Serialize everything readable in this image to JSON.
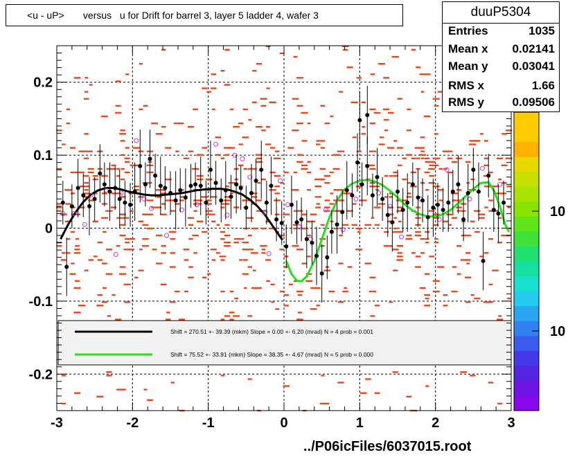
{
  "title": "<u - uP>       versus   u for Drift for barrel 3, layer 5 ladder 4, wafer 3",
  "stats": {
    "name": "duuP5304",
    "rows": [
      {
        "label": "Entries",
        "value": "1035"
      },
      {
        "label": "Mean x",
        "value": "0.02141"
      },
      {
        "label": "Mean y",
        "value": "0.03041"
      },
      {
        "label": "RMS x",
        "value": "1.66"
      },
      {
        "label": "RMS y",
        "value": "0.09506"
      }
    ]
  },
  "footer": "../P06icFiles/6037015.root",
  "colors": {
    "hist_cells": "#e8471a",
    "profile_markers": "#000000",
    "open_markers": "#d633d6",
    "fit_black": "#000000",
    "fit_green": "#22e01a"
  },
  "legend": [
    {
      "color": "#000000",
      "text": "Shift =   270.51 +- 39.39 (mkm) Slope =     0.00 +- 6.20 (mrad)  N = 4 prob = 0.001"
    },
    {
      "color": "#22e01a",
      "text": "Shift =    75.52 +- 33.91 (mkm) Slope =    38.35 +- 4.67 (mrad)  N = 5 prob = 0.000"
    }
  ],
  "colorbar": {
    "labels": [
      "10",
      "10"
    ]
  },
  "chart_data": {
    "type": "scatter",
    "title": "<u - uP>       versus   u for Drift for barrel 3, layer 5 ladder 4, wafer 3",
    "xlabel": "",
    "ylabel": "",
    "xlim": [
      -3,
      3
    ],
    "ylim": [
      -0.25,
      0.25
    ],
    "x_ticks": [
      -3,
      -2,
      -1,
      0,
      1,
      2,
      3
    ],
    "y_ticks": [
      -0.2,
      -0.1,
      0,
      0.1,
      0.2
    ],
    "x_tick_labels": [
      "-3",
      "-2",
      "-1",
      "0",
      "1",
      "2",
      "3"
    ],
    "y_tick_labels": [
      "-0.2",
      "-0.1",
      "0",
      "0.1",
      "0.2"
    ],
    "grid": true,
    "profile_black": [
      [
        -2.92,
        0.035,
        0.03
      ],
      [
        -2.87,
        -0.053,
        0.04
      ],
      [
        -2.8,
        0.03,
        0.03
      ],
      [
        -2.72,
        0.055,
        0.04
      ],
      [
        -2.65,
        0.045,
        0.03
      ],
      [
        -2.57,
        0.03,
        0.04
      ],
      [
        -2.5,
        0.04,
        0.03
      ],
      [
        -2.43,
        0.075,
        0.04
      ],
      [
        -2.37,
        0.06,
        0.03
      ],
      [
        -2.3,
        0.05,
        0.04
      ],
      [
        -2.23,
        0.055,
        0.03
      ],
      [
        -2.17,
        0.04,
        0.04
      ],
      [
        -2.1,
        0.035,
        0.03
      ],
      [
        -2.03,
        0.032,
        0.03
      ],
      [
        -1.97,
        0.05,
        0.04
      ],
      [
        -1.9,
        0.085,
        0.05
      ],
      [
        -1.83,
        0.06,
        0.03
      ],
      [
        -1.77,
        0.095,
        0.04
      ],
      [
        -1.7,
        0.072,
        0.03
      ],
      [
        -1.63,
        0.058,
        0.04
      ],
      [
        -1.57,
        0.055,
        0.03
      ],
      [
        -1.5,
        0.048,
        0.03
      ],
      [
        -1.43,
        0.038,
        0.04
      ],
      [
        -1.37,
        0.052,
        0.03
      ],
      [
        -1.3,
        0.042,
        0.04
      ],
      [
        -1.23,
        0.058,
        0.03
      ],
      [
        -1.17,
        0.06,
        0.03
      ],
      [
        -1.1,
        0.058,
        0.04
      ],
      [
        -1.03,
        0.035,
        0.03
      ],
      [
        -0.97,
        0.08,
        0.04
      ],
      [
        -0.9,
        0.062,
        0.03
      ],
      [
        -0.83,
        0.038,
        0.03
      ],
      [
        -0.77,
        0.052,
        0.04
      ],
      [
        -0.7,
        0.043,
        0.03
      ],
      [
        -0.63,
        0.06,
        0.04
      ],
      [
        -0.57,
        0.055,
        0.03
      ],
      [
        -0.5,
        0.028,
        0.03
      ],
      [
        -0.43,
        0.048,
        0.04
      ],
      [
        -0.37,
        0.065,
        0.03
      ],
      [
        -0.3,
        0.08,
        0.04
      ],
      [
        -0.23,
        0.035,
        0.03
      ],
      [
        -0.17,
        0.058,
        0.04
      ],
      [
        -0.1,
        0.012,
        0.03
      ],
      [
        -0.03,
        0.007,
        0.03
      ],
      [
        0.03,
        -0.025,
        0.03
      ],
      [
        0.1,
        0.032,
        0.04
      ],
      [
        0.17,
        0.008,
        0.03
      ],
      [
        0.23,
        0.012,
        0.03
      ],
      [
        0.3,
        -0.015,
        0.04
      ],
      [
        0.37,
        -0.02,
        0.03
      ],
      [
        0.43,
        -0.038,
        0.04
      ],
      [
        0.5,
        -0.062,
        0.04
      ],
      [
        0.57,
        -0.04,
        0.03
      ],
      [
        0.63,
        -0.005,
        0.03
      ],
      [
        0.7,
        0.005,
        0.04
      ],
      [
        0.77,
        0.022,
        0.03
      ],
      [
        0.83,
        0.052,
        0.04
      ],
      [
        0.9,
        0.045,
        0.03
      ],
      [
        0.97,
        0.09,
        0.04
      ],
      [
        1.03,
        0.06,
        0.03
      ],
      [
        1.1,
        0.085,
        0.04
      ],
      [
        1.17,
        0.045,
        0.03
      ],
      [
        1.23,
        0.07,
        0.04
      ],
      [
        1.3,
        0.04,
        0.03
      ],
      [
        1.37,
        0.018,
        0.03
      ],
      [
        1.43,
        0.008,
        0.04
      ],
      [
        1.5,
        0.05,
        0.03
      ],
      [
        1.57,
        0.025,
        0.03
      ],
      [
        1.63,
        0.035,
        0.04
      ],
      [
        1.7,
        0.06,
        0.03
      ],
      [
        1.77,
        0.042,
        0.04
      ],
      [
        1.83,
        0.038,
        0.03
      ],
      [
        1.9,
        0.015,
        0.03
      ],
      [
        1.97,
        0.028,
        0.04
      ],
      [
        2.03,
        0.032,
        0.03
      ],
      [
        2.1,
        0.025,
        0.03
      ],
      [
        2.17,
        0.035,
        0.04
      ],
      [
        2.23,
        0.05,
        0.03
      ],
      [
        2.3,
        0.06,
        0.04
      ],
      [
        2.37,
        0.012,
        0.03
      ],
      [
        2.43,
        0.048,
        0.04
      ],
      [
        2.5,
        0.08,
        0.03
      ],
      [
        2.57,
        0.05,
        0.04
      ],
      [
        2.63,
        -0.045,
        0.04
      ],
      [
        2.7,
        0.072,
        0.03
      ],
      [
        2.77,
        0.025,
        0.03
      ],
      [
        2.83,
        0.02,
        0.04
      ],
      [
        2.9,
        0.035,
        0.03
      ],
      [
        1.0,
        0.148,
        0.04
      ],
      [
        1.1,
        0.155,
        0.04
      ]
    ],
    "open_markers": [
      [
        -2.92,
        0.02
      ],
      [
        -2.77,
        0.02
      ],
      [
        -2.63,
        0.005
      ],
      [
        -2.55,
        0.045
      ],
      [
        -2.35,
        0.052
      ],
      [
        -2.15,
        0.048
      ],
      [
        -1.95,
        0.12
      ],
      [
        -1.85,
        0.04
      ],
      [
        -1.55,
        -0.01
      ],
      [
        -1.35,
        0.025
      ],
      [
        -1.15,
        0.032
      ],
      [
        -0.9,
        0.115
      ],
      [
        -0.75,
        0.018
      ],
      [
        -0.55,
        0.095
      ],
      [
        -0.45,
        0.07
      ],
      [
        -0.25,
        0.022
      ],
      [
        -0.05,
        0.065
      ],
      [
        -0.2,
        -0.035
      ],
      [
        -2.22,
        -0.036
      ],
      [
        0.05,
        0.032
      ],
      [
        0.2,
        0.002
      ],
      [
        0.35,
        -0.015
      ],
      [
        0.55,
        0.025
      ],
      [
        0.78,
        -0.002
      ],
      [
        0.95,
        0.04
      ],
      [
        1.25,
        0.048
      ],
      [
        1.55,
        -0.012
      ],
      [
        1.8,
        0.04
      ],
      [
        2.05,
        0.012
      ],
      [
        2.15,
        0.08
      ],
      [
        2.45,
        0.04
      ],
      [
        2.62,
        0.082
      ],
      [
        2.85,
        0.06
      ],
      [
        -1.75,
        0.027
      ],
      [
        -0.65,
        0.1
      ],
      [
        1.4,
        0.03
      ]
    ],
    "fit_black": {
      "x_range": [
        -2.95,
        -0.02
      ],
      "points": [
        [
          -2.95,
          -0.015
        ],
        [
          -2.85,
          0.005
        ],
        [
          -2.75,
          0.022
        ],
        [
          -2.65,
          0.036
        ],
        [
          -2.55,
          0.046
        ],
        [
          -2.45,
          0.052
        ],
        [
          -2.35,
          0.055
        ],
        [
          -2.25,
          0.055
        ],
        [
          -2.15,
          0.053
        ],
        [
          -2.05,
          0.05
        ],
        [
          -1.95,
          0.048
        ],
        [
          -1.85,
          0.046
        ],
        [
          -1.75,
          0.045
        ],
        [
          -1.65,
          0.045
        ],
        [
          -1.55,
          0.046
        ],
        [
          -1.45,
          0.047
        ],
        [
          -1.35,
          0.048
        ],
        [
          -1.25,
          0.05
        ],
        [
          -1.15,
          0.052
        ],
        [
          -1.05,
          0.053
        ],
        [
          -0.95,
          0.054
        ],
        [
          -0.85,
          0.054
        ],
        [
          -0.75,
          0.053
        ],
        [
          -0.65,
          0.05
        ],
        [
          -0.55,
          0.046
        ],
        [
          -0.45,
          0.039
        ],
        [
          -0.35,
          0.03
        ],
        [
          -0.25,
          0.018
        ],
        [
          -0.15,
          0.003
        ],
        [
          -0.05,
          -0.012
        ],
        [
          -0.02,
          -0.016
        ]
      ]
    },
    "fit_green": {
      "x_range": [
        0.03,
        2.97
      ],
      "points": [
        [
          0.03,
          -0.045
        ],
        [
          0.1,
          -0.063
        ],
        [
          0.17,
          -0.072
        ],
        [
          0.23,
          -0.073
        ],
        [
          0.3,
          -0.066
        ],
        [
          0.4,
          -0.045
        ],
        [
          0.5,
          -0.015
        ],
        [
          0.6,
          0.015
        ],
        [
          0.7,
          0.038
        ],
        [
          0.8,
          0.053
        ],
        [
          0.9,
          0.061
        ],
        [
          1.0,
          0.065
        ],
        [
          1.1,
          0.066
        ],
        [
          1.2,
          0.064
        ],
        [
          1.3,
          0.059
        ],
        [
          1.4,
          0.051
        ],
        [
          1.5,
          0.042
        ],
        [
          1.6,
          0.032
        ],
        [
          1.7,
          0.024
        ],
        [
          1.8,
          0.019
        ],
        [
          1.9,
          0.016
        ],
        [
          2.0,
          0.016
        ],
        [
          2.1,
          0.019
        ],
        [
          2.2,
          0.025
        ],
        [
          2.3,
          0.034
        ],
        [
          2.4,
          0.044
        ],
        [
          2.5,
          0.054
        ],
        [
          2.6,
          0.062
        ],
        [
          2.7,
          0.063
        ],
        [
          2.78,
          0.05
        ],
        [
          2.85,
          0.03
        ],
        [
          2.92,
          0.005
        ],
        [
          2.97,
          -0.005
        ]
      ]
    }
  }
}
